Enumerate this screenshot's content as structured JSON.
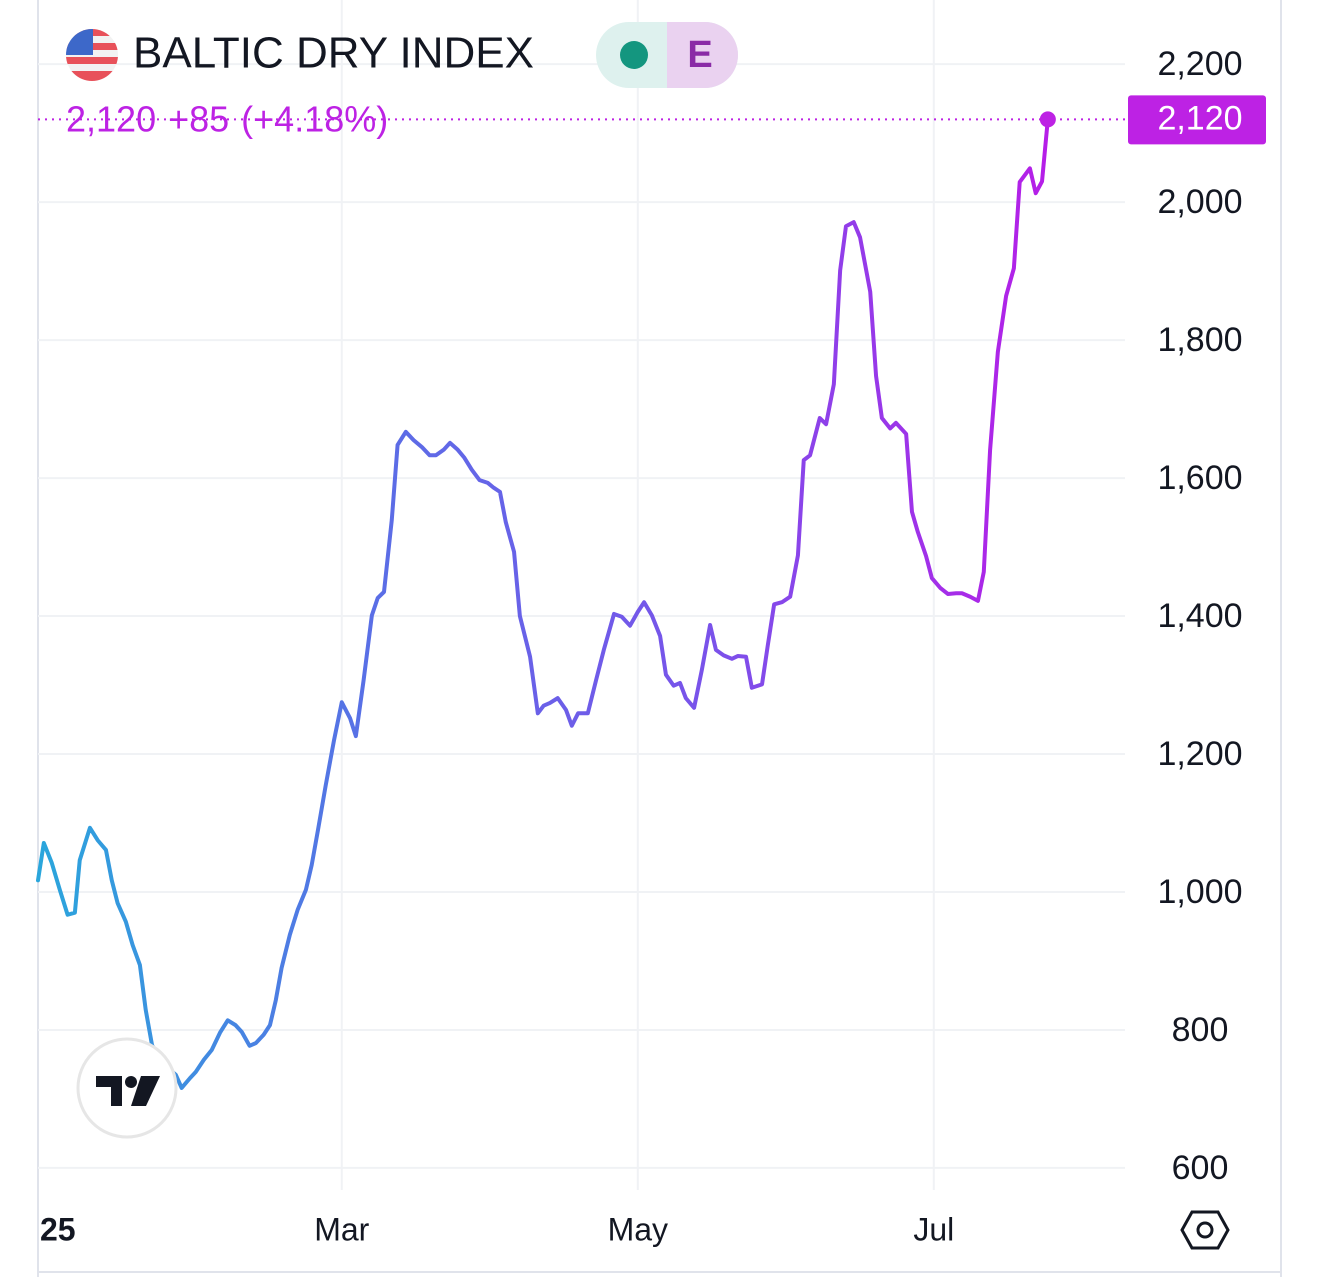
{
  "chart_data": {
    "type": "line",
    "title": "BALTIC DRY INDEX",
    "badge": "E",
    "last_price": {
      "value": 2120,
      "label": "2,120"
    },
    "change": "+85",
    "change_pct": "(+4.18%)",
    "xlim": [
      -3.6,
      220.4
    ],
    "xticks": [
      {
        "value": 0,
        "label": "25"
      },
      {
        "value": 59,
        "label": "Mar"
      },
      {
        "value": 120,
        "label": "May"
      },
      {
        "value": 181,
        "label": "Jul"
      }
    ],
    "ylim": [
      568,
      2293
    ],
    "yticks": [
      600,
      800,
      {
        "value": 1000,
        "label": "1,000"
      },
      {
        "value": 1200,
        "label": "1,200"
      },
      {
        "value": 1400,
        "label": "1,400"
      },
      {
        "value": 1600,
        "label": "1,600"
      },
      {
        "value": 1800,
        "label": "1,800"
      },
      {
        "value": 2000,
        "label": "2,000"
      },
      {
        "value": 2200,
        "label": "2,200"
      }
    ],
    "grid": true,
    "price_color": "#bd22e4",
    "series": [
      {
        "colors": [
          "#2aa6dc",
          "#5a6ee6",
          "#7a52ea",
          "#b61ee8"
        ],
        "x": [
          -3.6,
          -2.4,
          -0.8,
          0.9,
          2.5,
          4.0,
          5.0,
          7.1,
          8.7,
          10.4,
          11.6,
          12.8,
          14.5,
          15.9,
          17.4,
          18.6,
          19.9,
          21.5,
          23.1,
          24.8,
          26.0,
          27.7,
          28.9,
          30.6,
          32.2,
          33.9,
          35.5,
          37.1,
          38.4,
          40.0,
          41.3,
          42.9,
          44.2,
          45.4,
          46.6,
          48.3,
          49.9,
          51.6,
          52.8,
          54.1,
          55.7,
          57.4,
          59.0,
          60.7,
          61.9,
          63.5,
          65.2,
          66.4,
          67.7,
          69.3,
          70.5,
          72.2,
          73.8,
          75.5,
          77.1,
          78.4,
          80.0,
          81.3,
          82.9,
          84.2,
          85.8,
          87.4,
          89.1,
          90.3,
          91.6,
          92.8,
          94.5,
          95.7,
          97.8,
          99.4,
          100.6,
          101.9,
          103.5,
          105.2,
          106.4,
          107.7,
          109.7,
          111.4,
          113.0,
          115.1,
          116.7,
          118.4,
          120.0,
          121.3,
          122.9,
          124.6,
          125.8,
          127.4,
          128.7,
          129.9,
          131.6,
          133.2,
          134.9,
          136.1,
          137.7,
          139.4,
          140.6,
          142.3,
          143.5,
          145.6,
          146.8,
          148.1,
          149.7,
          151.4,
          153.0,
          154.2,
          155.5,
          157.5,
          158.8,
          160.4,
          161.7,
          162.9,
          164.5,
          165.8,
          167.9,
          169.1,
          170.3,
          172.0,
          173.2,
          175.3,
          176.5,
          177.7,
          179.4,
          180.6,
          182.3,
          183.9,
          185.6,
          186.8,
          188.5,
          190.1,
          191.3,
          192.6,
          194.2,
          195.9,
          197.5,
          198.7,
          200.8,
          202.0,
          203.3,
          204.5
        ],
        "values": [
          1017,
          1071,
          1043,
          1003,
          967,
          970,
          1046,
          1093,
          1075,
          1061,
          1017,
          984,
          957,
          923,
          894,
          829,
          778,
          757,
          745,
          735,
          716,
          730,
          739,
          757,
          771,
          796,
          814,
          807,
          797,
          777,
          781,
          793,
          807,
          843,
          890,
          938,
          974,
          1003,
          1039,
          1090,
          1155,
          1220,
          1275,
          1252,
          1226,
          1307,
          1401,
          1426,
          1435,
          1539,
          1648,
          1667,
          1655,
          1645,
          1633,
          1633,
          1641,
          1651,
          1641,
          1630,
          1612,
          1597,
          1593,
          1586,
          1580,
          1536,
          1493,
          1400,
          1341,
          1259,
          1270,
          1274,
          1281,
          1264,
          1241,
          1259,
          1259,
          1307,
          1351,
          1403,
          1399,
          1386,
          1406,
          1420,
          1401,
          1371,
          1315,
          1299,
          1303,
          1281,
          1267,
          1322,
          1387,
          1351,
          1343,
          1338,
          1342,
          1341,
          1296,
          1301,
          1358,
          1417,
          1420,
          1428,
          1488,
          1626,
          1633,
          1687,
          1678,
          1736,
          1901,
          1965,
          1971,
          1949,
          1870,
          1748,
          1687,
          1672,
          1680,
          1664,
          1551,
          1522,
          1487,
          1455,
          1441,
          1432,
          1433,
          1433,
          1428,
          1422,
          1464,
          1641,
          1783,
          1864,
          1904,
          2029,
          2049,
          2013,
          2030,
          2120
        ]
      }
    ]
  }
}
